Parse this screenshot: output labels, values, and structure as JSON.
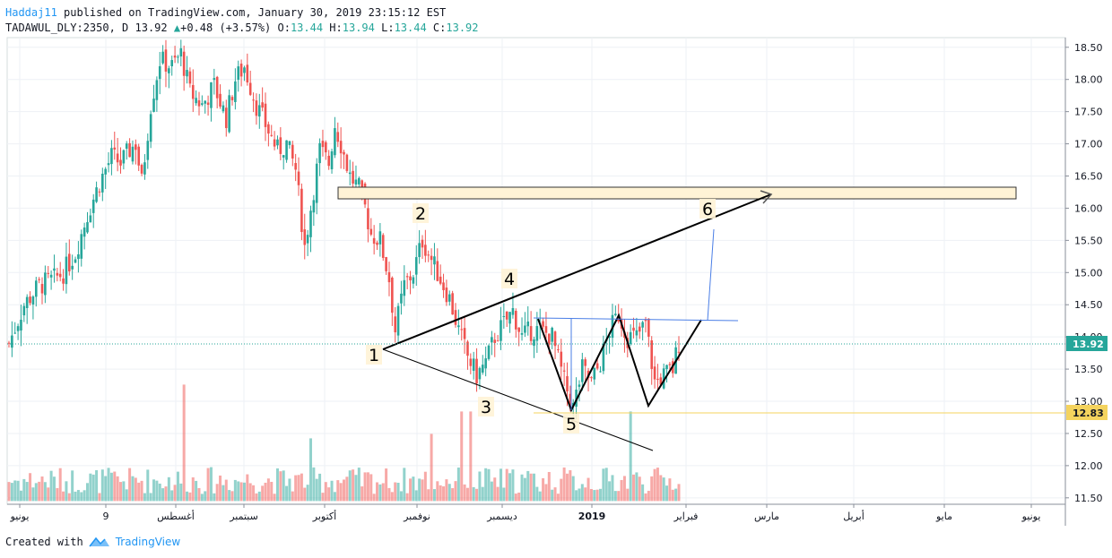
{
  "header": {
    "author": "Haddaj11",
    "published": "published on TradingView.com, January 30, 2019 23:15:12 EST",
    "symbol": "TADAWUL_DLY:2350, D 13.92",
    "change": "+0.48 (+3.57%)",
    "o_label": "O:",
    "o_val": "13.44",
    "h_label": "H:",
    "h_val": "13.94",
    "l_label": "L:",
    "l_val": "13.44",
    "c_label": "C:",
    "c_val": "13.92"
  },
  "footer": {
    "created": "Created with",
    "brand": "TradingView"
  },
  "colors": {
    "up": "#26a69a",
    "down": "#ef5350",
    "grid": "#eef1f5",
    "accent": "#2196f3",
    "zone": "#fff3d6"
  },
  "chart_data": {
    "type": "candlestick",
    "ylim": [
      11.4,
      18.65
    ],
    "yticks": [
      11.5,
      12.0,
      12.5,
      13.0,
      13.5,
      14.0,
      14.5,
      15.0,
      15.5,
      16.0,
      16.5,
      17.0,
      17.5,
      18.0,
      18.5
    ],
    "xtick_labels": [
      "يونيو",
      "9",
      "أغسطس",
      "سبتمبر",
      "أكتوبر",
      "نوفمبر",
      "ديسمبر",
      "2019",
      "فبراير",
      "مارس",
      "أبريل",
      "مايو",
      "يونيو"
    ],
    "last_price": "13.92",
    "support_price": "12.83",
    "close_path": [
      [
        0,
        13.9
      ],
      [
        5,
        14.5
      ],
      [
        10,
        14.8
      ],
      [
        15,
        14.9
      ],
      [
        18,
        15.0
      ],
      [
        22,
        15.3
      ],
      [
        26,
        15.9
      ],
      [
        30,
        16.4
      ],
      [
        34,
        16.8
      ],
      [
        37,
        16.7
      ],
      [
        40,
        16.9
      ],
      [
        42,
        17.0
      ],
      [
        44,
        16.4
      ],
      [
        47,
        17.6
      ],
      [
        50,
        18.3
      ],
      [
        54,
        18.2
      ],
      [
        57,
        18.4
      ],
      [
        60,
        17.8
      ],
      [
        64,
        17.6
      ],
      [
        68,
        17.9
      ],
      [
        72,
        17.4
      ],
      [
        75,
        18.0
      ],
      [
        78,
        18.2
      ],
      [
        82,
        17.6
      ],
      [
        86,
        17.2
      ],
      [
        89,
        16.9
      ],
      [
        92,
        17.0
      ],
      [
        95,
        16.6
      ],
      [
        98,
        15.4
      ],
      [
        100,
        16.0
      ],
      [
        103,
        16.9
      ],
      [
        106,
        16.7
      ],
      [
        108,
        17.3
      ],
      [
        110,
        17.0
      ],
      [
        113,
        16.5
      ],
      [
        116,
        16.3
      ],
      [
        118,
        16.0
      ],
      [
        120,
        15.6
      ],
      [
        123,
        15.5
      ],
      [
        126,
        14.9
      ],
      [
        128,
        14.1
      ],
      [
        131,
        14.8
      ],
      [
        134,
        15.0
      ],
      [
        137,
        15.5
      ],
      [
        140,
        15.2
      ],
      [
        143,
        14.9
      ],
      [
        146,
        14.6
      ],
      [
        149,
        14.1
      ],
      [
        152,
        13.7
      ],
      [
        155,
        13.4
      ],
      [
        158,
        13.6
      ],
      [
        161,
        14.0
      ],
      [
        164,
        14.2
      ],
      [
        167,
        14.4
      ],
      [
        170,
        14.0
      ],
      [
        173,
        14.1
      ],
      [
        176,
        14.1
      ],
      [
        180,
        14.0
      ],
      [
        184,
        13.3
      ],
      [
        187,
        12.9
      ],
      [
        190,
        13.5
      ],
      [
        193,
        13.3
      ],
      [
        196,
        13.6
      ],
      [
        199,
        14.1
      ],
      [
        202,
        14.35
      ],
      [
        205,
        14.0
      ],
      [
        208,
        14.0
      ],
      [
        211,
        14.2
      ],
      [
        214,
        13.3
      ],
      [
        217,
        13.4
      ],
      [
        220,
        13.5
      ],
      [
        222,
        13.92
      ]
    ],
    "volume_hint": "volume bars along the bottom of the price pane",
    "annotations": [
      "1",
      "2",
      "3",
      "4",
      "5",
      "6"
    ]
  }
}
